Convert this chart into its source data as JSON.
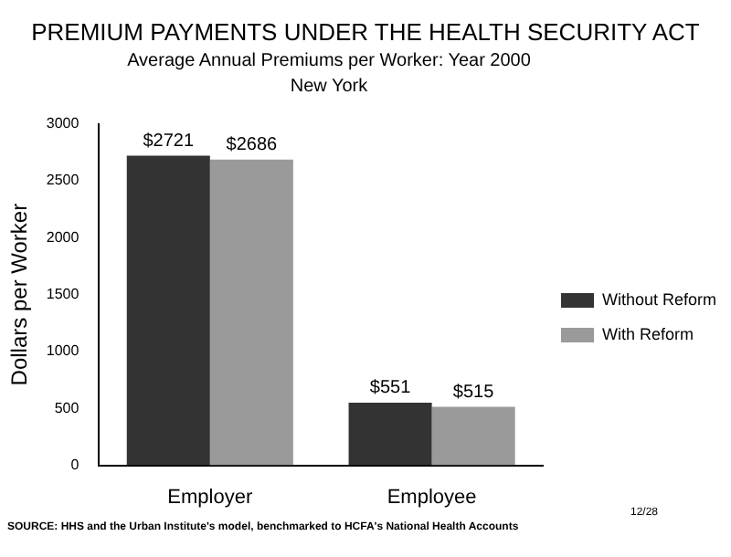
{
  "chart_data": {
    "type": "bar",
    "title": "PREMIUM PAYMENTS UNDER THE HEALTH SECURITY ACT",
    "subtitle": "Average Annual Premiums per Worker:  Year 2000",
    "annotations": [
      "New York",
      "SOURCE: HHS and the Urban Institute's model, benchmarked to HCFA's National Health Accounts",
      "12/28"
    ],
    "ylabel": "Dollars per Worker",
    "categories": [
      "Employer",
      "Employee"
    ],
    "series": [
      {
        "name": "Without Reform",
        "color": "#333333",
        "values": [
          2721,
          551
        ]
      },
      {
        "name": "With Reform",
        "color": "#9a9a9a",
        "values": [
          2686,
          515
        ]
      }
    ],
    "value_labels": [
      [
        "$2721",
        "$551"
      ],
      [
        "$2686",
        "$515"
      ]
    ],
    "ylim": [
      0,
      3000
    ],
    "yticks": [
      0,
      500,
      1000,
      1500,
      2000,
      2500,
      3000
    ],
    "grid": false,
    "legend": "right"
  }
}
